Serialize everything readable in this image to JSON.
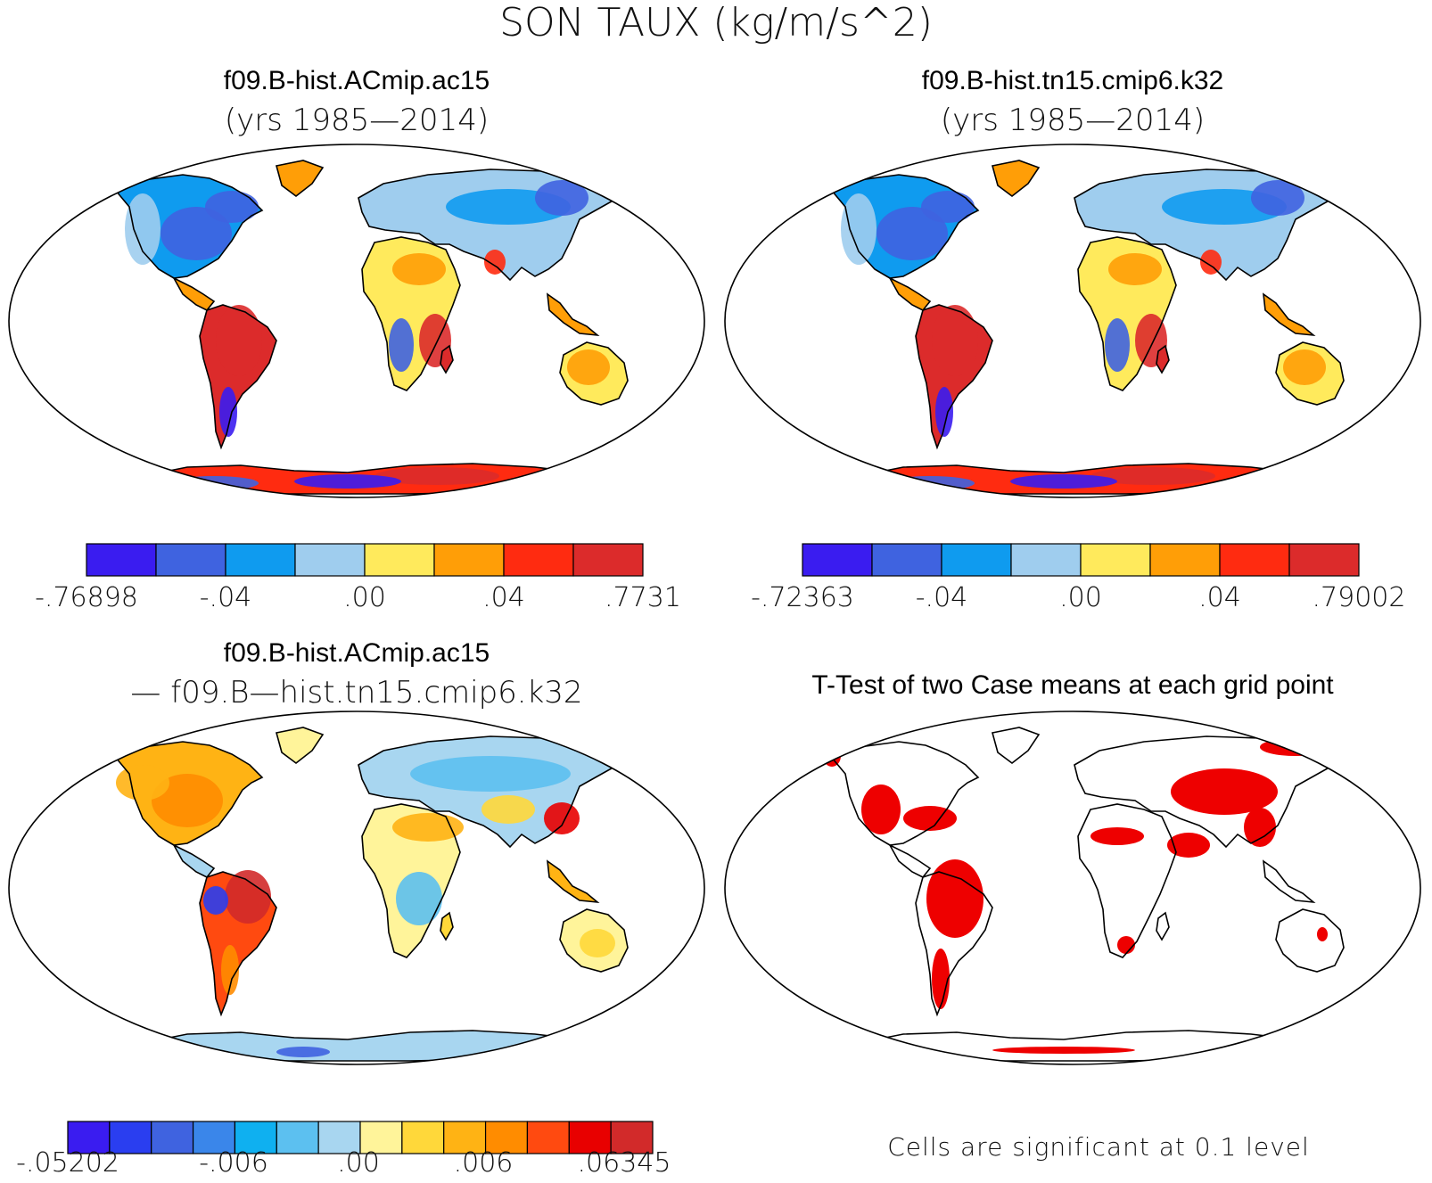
{
  "figure": {
    "title": "SON TAUX (kg/m/s^2)"
  },
  "panels": [
    {
      "id": "case1",
      "title": "f09.B-hist.ACmip.ac15",
      "subtitle": "(yrs 1985—2014)",
      "colorbar": {
        "colors": [
          "#3a1cf0",
          "#3f63e0",
          "#0f9bef",
          "#9fcdee",
          "#ffea5c",
          "#ff9e07",
          "#ff2b10",
          "#dc2b2b"
        ],
        "tick_labels": [
          "-.76898",
          "-.04",
          ".00",
          ".04",
          ".7731"
        ]
      }
    },
    {
      "id": "case2",
      "title": "f09.B-hist.tn15.cmip6.k32",
      "subtitle": "(yrs 1985—2014)",
      "colorbar": {
        "colors": [
          "#3a1cf0",
          "#3f63e0",
          "#0f9bef",
          "#9fcdee",
          "#ffea5c",
          "#ff9e07",
          "#ff2b10",
          "#dc2b2b"
        ],
        "tick_labels": [
          "-.72363",
          "-.04",
          ".00",
          ".04",
          ".79002"
        ]
      }
    },
    {
      "id": "diff",
      "title": "f09.B-hist.ACmip.ac15",
      "subtitle": "— f09.B—hist.tn15.cmip6.k32",
      "colorbar": {
        "colors": [
          "#3a1cf0",
          "#2a3ef0",
          "#3f63e0",
          "#3a86ea",
          "#0fb0f0",
          "#5cc0f0",
          "#a8d6f0",
          "#fff49a",
          "#ffd83a",
          "#ffb314",
          "#ff8c00",
          "#ff4a10",
          "#e80000",
          "#d22a2a"
        ],
        "tick_labels": [
          "-.05202",
          "-.006",
          ".00",
          ".006",
          ".06345"
        ]
      }
    },
    {
      "id": "ttest",
      "title": "T-Test of two Case means at each grid point",
      "footnote": "Cells are significant at 0.1 level",
      "significance_color": "#ee0000"
    }
  ]
}
